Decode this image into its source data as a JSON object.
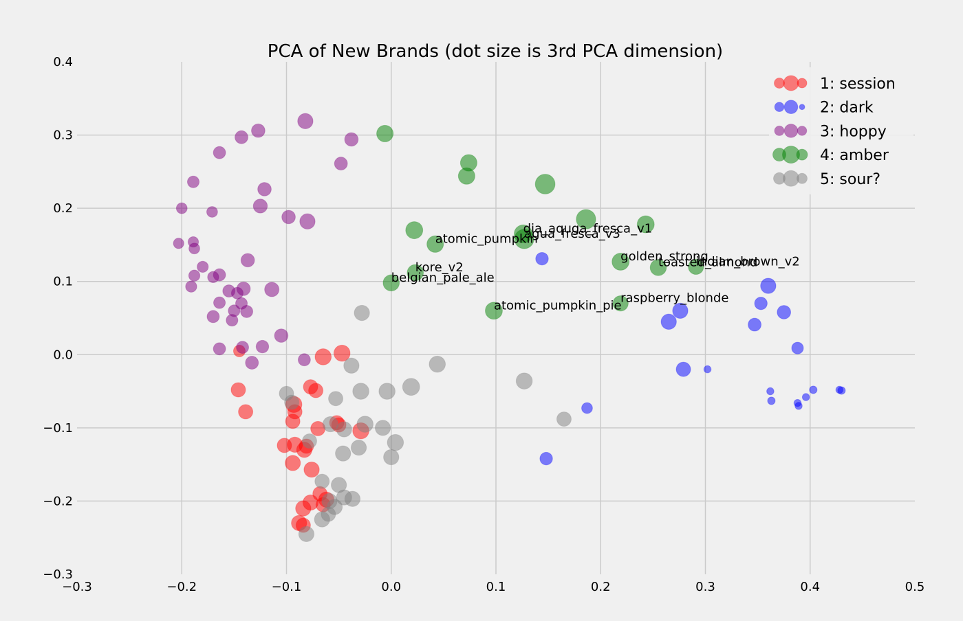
{
  "chart_data": {
    "type": "scatter",
    "title": "PCA of New Brands (dot size is 3rd PCA dimension)",
    "xlabel": "",
    "ylabel": "",
    "xlim": [
      -0.3,
      0.5
    ],
    "ylim": [
      -0.3,
      0.4
    ],
    "x_ticks": [
      -0.3,
      -0.2,
      -0.1,
      0.0,
      0.1,
      0.2,
      0.3,
      0.4,
      0.5
    ],
    "x_tick_labels": [
      "−0.3",
      "−0.2",
      "−0.1",
      "0.0",
      "0.1",
      "0.2",
      "0.3",
      "0.4",
      "0.5"
    ],
    "y_ticks": [
      -0.3,
      -0.2,
      -0.1,
      0.0,
      0.1,
      0.2,
      0.3,
      0.4
    ],
    "y_tick_labels": [
      "−0.3",
      "−0.2",
      "−0.1",
      "0.0",
      "0.1",
      "0.2",
      "0.3",
      "0.4"
    ],
    "grid": true,
    "legend_position": "top-right",
    "size_encoding": "3rd PCA dimension (relative, 0-1)",
    "series": [
      {
        "name": "1: session",
        "color": "#ff0000",
        "points": [
          {
            "x": -0.145,
            "y": 0.005,
            "s": 0.35
          },
          {
            "x": -0.065,
            "y": -0.003,
            "s": 0.6
          },
          {
            "x": -0.047,
            "y": 0.002,
            "s": 0.6
          },
          {
            "x": -0.146,
            "y": -0.048,
            "s": 0.5
          },
          {
            "x": -0.139,
            "y": -0.078,
            "s": 0.5
          },
          {
            "x": -0.077,
            "y": -0.044,
            "s": 0.5
          },
          {
            "x": -0.072,
            "y": -0.049,
            "s": 0.5
          },
          {
            "x": -0.093,
            "y": -0.068,
            "s": 0.6
          },
          {
            "x": -0.092,
            "y": -0.078,
            "s": 0.5
          },
          {
            "x": -0.094,
            "y": -0.091,
            "s": 0.5
          },
          {
            "x": -0.07,
            "y": -0.101,
            "s": 0.5
          },
          {
            "x": -0.052,
            "y": -0.093,
            "s": 0.5
          },
          {
            "x": -0.05,
            "y": -0.096,
            "s": 0.5
          },
          {
            "x": -0.029,
            "y": -0.104,
            "s": 0.6
          },
          {
            "x": -0.102,
            "y": -0.124,
            "s": 0.5
          },
          {
            "x": -0.092,
            "y": -0.123,
            "s": 0.55
          },
          {
            "x": -0.083,
            "y": -0.13,
            "s": 0.55
          },
          {
            "x": -0.081,
            "y": -0.125,
            "s": 0.5
          },
          {
            "x": -0.094,
            "y": -0.148,
            "s": 0.55
          },
          {
            "x": -0.076,
            "y": -0.157,
            "s": 0.55
          },
          {
            "x": -0.068,
            "y": -0.19,
            "s": 0.5
          },
          {
            "x": -0.062,
            "y": -0.198,
            "s": 0.55
          },
          {
            "x": -0.077,
            "y": -0.202,
            "s": 0.55
          },
          {
            "x": -0.084,
            "y": -0.21,
            "s": 0.55
          },
          {
            "x": -0.088,
            "y": -0.23,
            "s": 0.55
          },
          {
            "x": -0.084,
            "y": -0.233,
            "s": 0.5
          },
          {
            "x": -0.065,
            "y": -0.205,
            "s": 0.5
          }
        ]
      },
      {
        "name": "2: dark",
        "color": "#0000ff",
        "points": [
          {
            "x": 0.144,
            "y": 0.131,
            "s": 0.4
          },
          {
            "x": 0.36,
            "y": 0.094,
            "s": 0.55
          },
          {
            "x": 0.353,
            "y": 0.07,
            "s": 0.4
          },
          {
            "x": 0.375,
            "y": 0.058,
            "s": 0.45
          },
          {
            "x": 0.347,
            "y": 0.041,
            "s": 0.42
          },
          {
            "x": 0.276,
            "y": 0.06,
            "s": 0.55
          },
          {
            "x": 0.265,
            "y": 0.045,
            "s": 0.55
          },
          {
            "x": 0.388,
            "y": 0.009,
            "s": 0.35
          },
          {
            "x": 0.279,
            "y": -0.02,
            "s": 0.5
          },
          {
            "x": 0.302,
            "y": -0.02,
            "s": 0.1
          },
          {
            "x": 0.187,
            "y": -0.073,
            "s": 0.3
          },
          {
            "x": 0.148,
            "y": -0.142,
            "s": 0.4
          },
          {
            "x": 0.362,
            "y": -0.05,
            "s": 0.1
          },
          {
            "x": 0.363,
            "y": -0.063,
            "s": 0.12
          },
          {
            "x": 0.388,
            "y": -0.066,
            "s": 0.1
          },
          {
            "x": 0.389,
            "y": -0.07,
            "s": 0.1
          },
          {
            "x": 0.396,
            "y": -0.058,
            "s": 0.1
          },
          {
            "x": 0.403,
            "y": -0.048,
            "s": 0.12
          },
          {
            "x": 0.428,
            "y": -0.048,
            "s": 0.1
          },
          {
            "x": 0.43,
            "y": -0.049,
            "s": 0.12
          }
        ]
      },
      {
        "name": "3: hoppy",
        "color": "#800080",
        "points": [
          {
            "x": -0.082,
            "y": 0.319,
            "s": 0.55
          },
          {
            "x": -0.127,
            "y": 0.306,
            "s": 0.45
          },
          {
            "x": -0.143,
            "y": 0.297,
            "s": 0.42
          },
          {
            "x": -0.038,
            "y": 0.294,
            "s": 0.45
          },
          {
            "x": -0.164,
            "y": 0.276,
            "s": 0.38
          },
          {
            "x": -0.048,
            "y": 0.261,
            "s": 0.42
          },
          {
            "x": -0.189,
            "y": 0.236,
            "s": 0.35
          },
          {
            "x": -0.121,
            "y": 0.226,
            "s": 0.45
          },
          {
            "x": -0.2,
            "y": 0.2,
            "s": 0.3
          },
          {
            "x": -0.171,
            "y": 0.195,
            "s": 0.3
          },
          {
            "x": -0.125,
            "y": 0.203,
            "s": 0.48
          },
          {
            "x": -0.098,
            "y": 0.188,
            "s": 0.45
          },
          {
            "x": -0.08,
            "y": 0.182,
            "s": 0.55
          },
          {
            "x": -0.203,
            "y": 0.152,
            "s": 0.28
          },
          {
            "x": -0.189,
            "y": 0.154,
            "s": 0.28
          },
          {
            "x": -0.188,
            "y": 0.145,
            "s": 0.3
          },
          {
            "x": -0.137,
            "y": 0.129,
            "s": 0.45
          },
          {
            "x": -0.18,
            "y": 0.12,
            "s": 0.32
          },
          {
            "x": -0.188,
            "y": 0.108,
            "s": 0.32
          },
          {
            "x": -0.17,
            "y": 0.106,
            "s": 0.32
          },
          {
            "x": -0.164,
            "y": 0.109,
            "s": 0.38
          },
          {
            "x": -0.155,
            "y": 0.087,
            "s": 0.38
          },
          {
            "x": -0.147,
            "y": 0.084,
            "s": 0.35
          },
          {
            "x": -0.141,
            "y": 0.09,
            "s": 0.45
          },
          {
            "x": -0.114,
            "y": 0.089,
            "s": 0.5
          },
          {
            "x": -0.191,
            "y": 0.093,
            "s": 0.32
          },
          {
            "x": -0.164,
            "y": 0.071,
            "s": 0.35
          },
          {
            "x": -0.143,
            "y": 0.07,
            "s": 0.35
          },
          {
            "x": -0.15,
            "y": 0.06,
            "s": 0.35
          },
          {
            "x": -0.138,
            "y": 0.059,
            "s": 0.38
          },
          {
            "x": -0.17,
            "y": 0.052,
            "s": 0.38
          },
          {
            "x": -0.152,
            "y": 0.047,
            "s": 0.35
          },
          {
            "x": -0.105,
            "y": 0.026,
            "s": 0.45
          },
          {
            "x": -0.164,
            "y": 0.008,
            "s": 0.38
          },
          {
            "x": -0.142,
            "y": 0.01,
            "s": 0.38
          },
          {
            "x": -0.123,
            "y": 0.011,
            "s": 0.4
          },
          {
            "x": -0.133,
            "y": -0.011,
            "s": 0.42
          },
          {
            "x": -0.083,
            "y": -0.007,
            "s": 0.38
          }
        ]
      },
      {
        "name": "4: amber",
        "color": "#008000",
        "points": [
          {
            "x": -0.006,
            "y": 0.302,
            "s": 0.62
          },
          {
            "x": 0.074,
            "y": 0.262,
            "s": 0.62
          },
          {
            "x": 0.072,
            "y": 0.244,
            "s": 0.62
          },
          {
            "x": 0.147,
            "y": 0.233,
            "s": 0.8,
            "label": ""
          },
          {
            "x": 0.186,
            "y": 0.185,
            "s": 0.78
          },
          {
            "x": 0.243,
            "y": 0.178,
            "s": 0.65
          },
          {
            "x": 0.022,
            "y": 0.17,
            "s": 0.65
          },
          {
            "x": 0.126,
            "y": 0.165,
            "s": 0.7,
            "label": "dia_aquga_fresca_v1"
          },
          {
            "x": 0.127,
            "y": 0.158,
            "s": 0.78,
            "label": "agua_fresca_v3"
          },
          {
            "x": 0.042,
            "y": 0.151,
            "s": 0.62,
            "label": "atomic_pumpkin"
          },
          {
            "x": 0.219,
            "y": 0.127,
            "s": 0.65,
            "label": "golden_strong"
          },
          {
            "x": 0.255,
            "y": 0.119,
            "s": 0.6,
            "label": "toasted_almond"
          },
          {
            "x": 0.291,
            "y": 0.12,
            "s": 0.55,
            "label": "indian_brown_v2"
          },
          {
            "x": 0.023,
            "y": 0.112,
            "s": 0.6,
            "label": "kore_v2"
          },
          {
            "x": 0.0,
            "y": 0.098,
            "s": 0.6,
            "label": "belgian_pale_ale"
          },
          {
            "x": 0.219,
            "y": 0.07,
            "s": 0.55,
            "label": "raspberry_blonde"
          },
          {
            "x": 0.098,
            "y": 0.06,
            "s": 0.65,
            "label": "atomic_pumpkin_pie"
          }
        ]
      },
      {
        "name": "5: sour?",
        "color": "#808080",
        "points": [
          {
            "x": -0.028,
            "y": 0.057,
            "s": 0.55
          },
          {
            "x": -0.038,
            "y": -0.015,
            "s": 0.55
          },
          {
            "x": 0.044,
            "y": -0.013,
            "s": 0.6
          },
          {
            "x": -0.1,
            "y": -0.053,
            "s": 0.5
          },
          {
            "x": -0.095,
            "y": -0.065,
            "s": 0.5
          },
          {
            "x": -0.053,
            "y": -0.06,
            "s": 0.5
          },
          {
            "x": -0.029,
            "y": -0.05,
            "s": 0.6
          },
          {
            "x": -0.004,
            "y": -0.05,
            "s": 0.6
          },
          {
            "x": 0.019,
            "y": -0.044,
            "s": 0.65
          },
          {
            "x": 0.127,
            "y": -0.036,
            "s": 0.6
          },
          {
            "x": 0.165,
            "y": -0.088,
            "s": 0.5
          },
          {
            "x": -0.058,
            "y": -0.095,
            "s": 0.55
          },
          {
            "x": -0.045,
            "y": -0.102,
            "s": 0.55
          },
          {
            "x": -0.025,
            "y": -0.095,
            "s": 0.6
          },
          {
            "x": -0.008,
            "y": -0.1,
            "s": 0.55
          },
          {
            "x": 0.004,
            "y": -0.12,
            "s": 0.6
          },
          {
            "x": -0.078,
            "y": -0.118,
            "s": 0.5
          },
          {
            "x": -0.031,
            "y": -0.127,
            "s": 0.55
          },
          {
            "x": -0.046,
            "y": -0.135,
            "s": 0.55
          },
          {
            "x": 0.0,
            "y": -0.14,
            "s": 0.55
          },
          {
            "x": -0.066,
            "y": -0.173,
            "s": 0.5
          },
          {
            "x": -0.05,
            "y": -0.178,
            "s": 0.55
          },
          {
            "x": -0.059,
            "y": -0.2,
            "s": 0.55
          },
          {
            "x": -0.045,
            "y": -0.195,
            "s": 0.55
          },
          {
            "x": -0.037,
            "y": -0.197,
            "s": 0.55
          },
          {
            "x": -0.054,
            "y": -0.208,
            "s": 0.55
          },
          {
            "x": -0.06,
            "y": -0.218,
            "s": 0.5
          },
          {
            "x": -0.066,
            "y": -0.225,
            "s": 0.55
          },
          {
            "x": -0.081,
            "y": -0.245,
            "s": 0.55
          }
        ]
      }
    ]
  }
}
